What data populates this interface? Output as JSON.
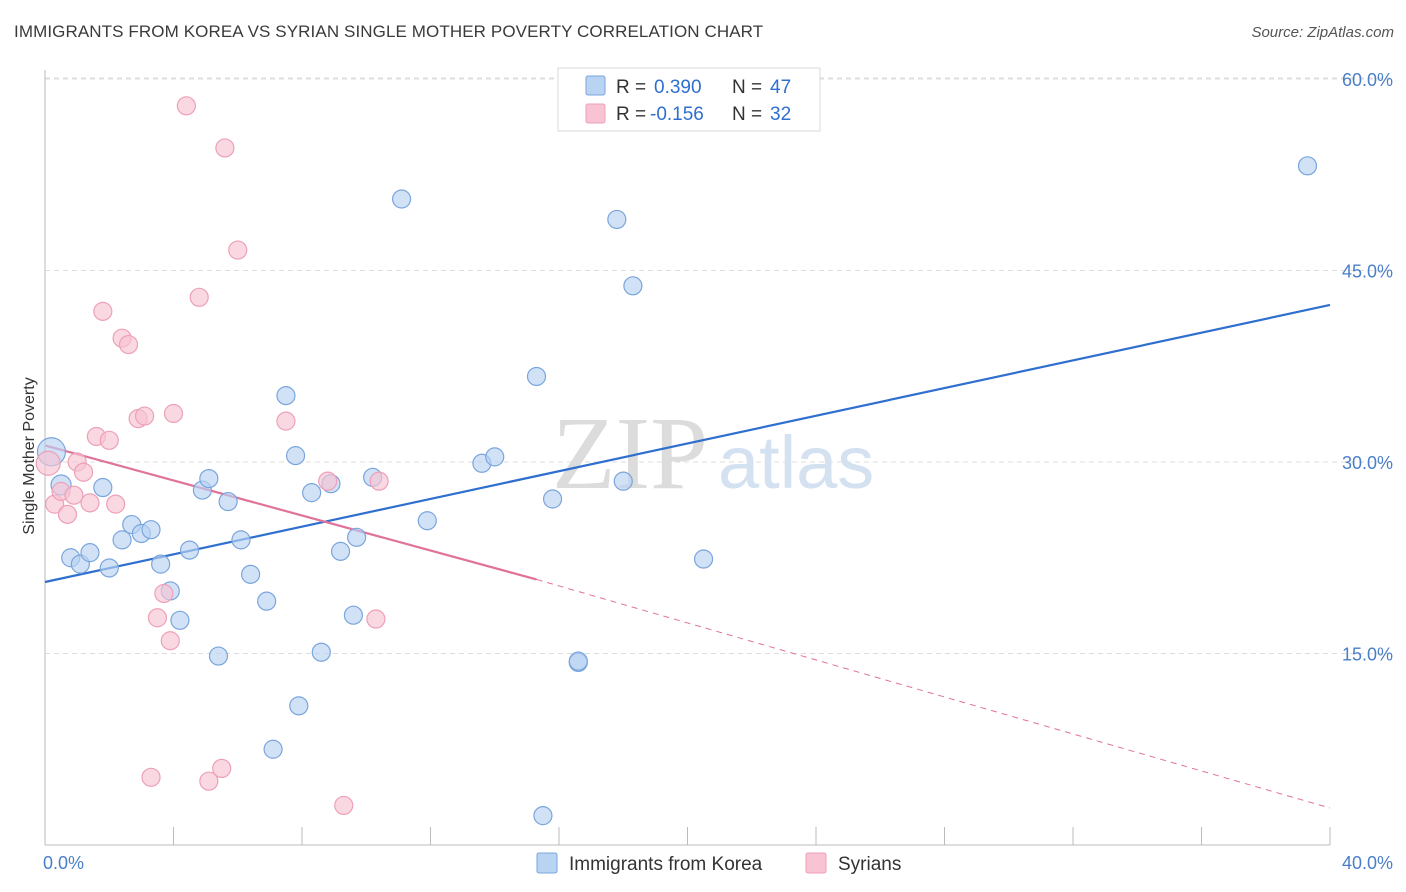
{
  "title": "IMMIGRANTS FROM KOREA VS SYRIAN SINGLE MOTHER POVERTY CORRELATION CHART",
  "source": "Source: ZipAtlas.com",
  "watermark": {
    "zip": "ZIP",
    "atlas": "atlas"
  },
  "colors": {
    "korea_fill": "#b9d3f2",
    "korea_stroke": "#7aa5dc",
    "korea_line": "#2f6fcf",
    "syria_fill": "#f8c3d3",
    "syria_stroke": "#eda0b8",
    "syria_line": "#e0739a",
    "grid": "#dddddd",
    "tick_text": "#4a7fc8"
  },
  "legend": {
    "rows": [
      {
        "r_label": "R =",
        "r_value": "0.390",
        "n_label": "N =",
        "n_value": "47"
      },
      {
        "r_label": "R =",
        "r_value": "-0.156",
        "n_label": "N =",
        "n_value": "32"
      }
    ]
  },
  "chart_data": {
    "type": "scatter",
    "title": "IMMIGRANTS FROM KOREA VS SYRIAN SINGLE MOTHER POVERTY CORRELATION CHART",
    "xlabel": "",
    "ylabel": "Single Mother Poverty",
    "xlim": [
      0,
      40
    ],
    "ylim": [
      0,
      63
    ],
    "x_tick_labels": [
      "0.0%",
      "40.0%"
    ],
    "y_ticks": [
      15,
      30,
      45,
      60
    ],
    "y_tick_labels": [
      "15.0%",
      "30.0%",
      "45.0%",
      "60.0%"
    ],
    "grid": true,
    "legend_position": "top-center",
    "series": [
      {
        "name": "Immigrants from Korea",
        "r": 0.39,
        "n": 47,
        "trend": {
          "x": [
            0,
            40
          ],
          "y": [
            20.6,
            42.3
          ],
          "dashed_after": null
        },
        "points": [
          [
            0.2,
            30.8,
            14
          ],
          [
            0.5,
            28.2,
            10
          ],
          [
            0.8,
            22.5,
            9
          ],
          [
            1.1,
            22.0,
            9
          ],
          [
            1.4,
            22.9,
            9
          ],
          [
            1.8,
            28.0,
            9
          ],
          [
            2.0,
            21.7,
            9
          ],
          [
            2.4,
            23.9,
            9
          ],
          [
            2.7,
            25.1,
            9
          ],
          [
            3.0,
            24.4,
            9
          ],
          [
            3.3,
            24.7,
            9
          ],
          [
            3.6,
            22.0,
            9
          ],
          [
            3.9,
            19.9,
            9
          ],
          [
            4.2,
            17.6,
            9
          ],
          [
            4.5,
            23.1,
            9
          ],
          [
            4.9,
            27.8,
            9
          ],
          [
            5.1,
            28.7,
            9
          ],
          [
            5.4,
            14.8,
            9
          ],
          [
            5.7,
            26.9,
            9
          ],
          [
            6.1,
            23.9,
            9
          ],
          [
            6.4,
            21.2,
            9
          ],
          [
            6.9,
            19.1,
            9
          ],
          [
            7.1,
            7.5,
            9
          ],
          [
            7.5,
            35.2,
            9
          ],
          [
            7.8,
            30.5,
            9
          ],
          [
            7.9,
            10.9,
            9
          ],
          [
            8.3,
            27.6,
            9
          ],
          [
            8.6,
            15.1,
            9
          ],
          [
            8.9,
            28.3,
            9
          ],
          [
            9.2,
            23.0,
            9
          ],
          [
            9.6,
            18.0,
            9
          ],
          [
            9.7,
            24.1,
            9
          ],
          [
            10.2,
            28.8,
            9
          ],
          [
            11.1,
            50.6,
            9
          ],
          [
            11.9,
            25.4,
            9
          ],
          [
            13.6,
            29.9,
            9
          ],
          [
            14.0,
            30.4,
            9
          ],
          [
            15.3,
            36.7,
            9
          ],
          [
            15.5,
            2.3,
            9
          ],
          [
            15.8,
            27.1,
            9
          ],
          [
            16.6,
            14.3,
            9
          ],
          [
            16.6,
            14.4,
            9
          ],
          [
            17.8,
            49.0,
            9
          ],
          [
            18.0,
            28.5,
            9
          ],
          [
            18.3,
            43.8,
            9
          ],
          [
            20.5,
            22.4,
            9
          ],
          [
            39.3,
            53.2,
            9
          ]
        ]
      },
      {
        "name": "Syrians",
        "r": -0.156,
        "n": 32,
        "trend": {
          "x": [
            0,
            15.3,
            40
          ],
          "y": [
            31.3,
            20.8,
            2.9
          ],
          "dashed_after": 15.3
        },
        "points": [
          [
            0.1,
            29.9,
            12
          ],
          [
            0.3,
            26.7,
            9
          ],
          [
            0.5,
            27.7,
            9
          ],
          [
            0.7,
            25.9,
            9
          ],
          [
            0.9,
            27.4,
            9
          ],
          [
            1.0,
            30.0,
            9
          ],
          [
            1.2,
            29.2,
            9
          ],
          [
            1.4,
            26.8,
            9
          ],
          [
            1.6,
            32.0,
            9
          ],
          [
            1.8,
            41.8,
            9
          ],
          [
            2.0,
            31.7,
            9
          ],
          [
            2.2,
            26.7,
            9
          ],
          [
            2.4,
            39.7,
            9
          ],
          [
            2.6,
            39.2,
            9
          ],
          [
            2.9,
            33.4,
            9
          ],
          [
            3.1,
            33.6,
            9
          ],
          [
            3.3,
            5.3,
            9
          ],
          [
            3.5,
            17.8,
            9
          ],
          [
            3.7,
            19.7,
            9
          ],
          [
            3.9,
            16.0,
            9
          ],
          [
            4.0,
            33.8,
            9
          ],
          [
            4.4,
            57.9,
            9
          ],
          [
            4.8,
            42.9,
            9
          ],
          [
            5.1,
            5.0,
            9
          ],
          [
            5.5,
            6.0,
            9
          ],
          [
            5.6,
            54.6,
            9
          ],
          [
            6.0,
            46.6,
            9
          ],
          [
            7.5,
            33.2,
            9
          ],
          [
            8.8,
            28.5,
            9
          ],
          [
            9.3,
            3.1,
            9
          ],
          [
            10.3,
            17.7,
            9
          ],
          [
            10.4,
            28.5,
            9
          ]
        ]
      }
    ]
  },
  "bottom_legend": [
    {
      "label": "Immigrants from Korea"
    },
    {
      "label": "Syrians"
    }
  ]
}
